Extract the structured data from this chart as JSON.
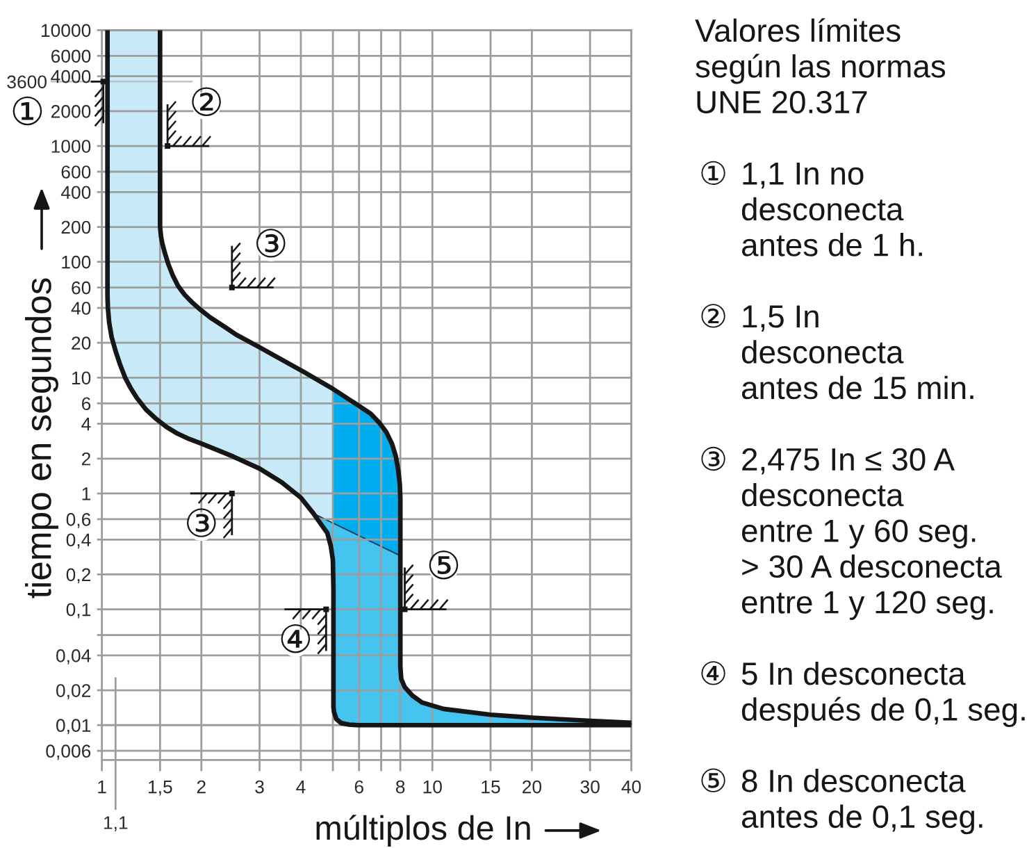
{
  "chart_data": {
    "type": "line",
    "title": "Valores límites\nsegún las normas\nUNE 20.317",
    "xlabel": "múltiplos de In",
    "ylabel": "tiempo en segundos",
    "log": "xy",
    "xlim": [
      1,
      40
    ],
    "ylim": [
      0.005,
      10000
    ],
    "xticks": [
      1,
      {
        "value": 1.5,
        "label": "1,5"
      },
      2,
      3,
      4,
      {
        "value": 5,
        "label": null
      },
      6,
      {
        "value": 7,
        "label": null
      },
      8,
      10,
      15,
      20,
      30,
      40
    ],
    "yticks": [
      10000,
      6000,
      4000,
      2000,
      1000,
      600,
      400,
      200,
      100,
      60,
      40,
      20,
      10,
      6,
      4,
      2,
      1,
      {
        "value": 0.6,
        "label": "0,6"
      },
      {
        "value": 0.4,
        "label": "0,4"
      },
      {
        "value": 0.2,
        "label": "0,2"
      },
      {
        "value": 0.1,
        "label": "0,1"
      },
      {
        "value": 0.06,
        "label": null
      },
      {
        "value": 0.04,
        "label": "0,04"
      },
      {
        "value": 0.02,
        "label": "0,02"
      },
      {
        "value": 0.01,
        "label": "0,01"
      },
      {
        "value": 0.006,
        "label": "0,006"
      }
    ],
    "grid": true,
    "ref_lines": [
      {
        "axis": "x",
        "value": 1.1,
        "label": "1,1",
        "color": "#9d9d9d"
      },
      {
        "axis": "y",
        "value": 3600,
        "label": "3600",
        "color": "#bdbdbd"
      }
    ],
    "series": [
      {
        "type": "area",
        "color": "#c8e9f8",
        "x": [
          1.04,
          1.04,
          1.043,
          1.052,
          1.07,
          1.1,
          1.135,
          1.176,
          1.22,
          1.275,
          1.36,
          1.46,
          1.57,
          1.69,
          1.84,
          2,
          2.5,
          3,
          3.5,
          4,
          4.37,
          5,
          5,
          4.6,
          4.13,
          3.5,
          3,
          2.55,
          2.35,
          2.13,
          2,
          1.885,
          1.78,
          1.7,
          1.64,
          1.59,
          1.55,
          1.523,
          1.51,
          1.5,
          1.5
        ],
        "values": [
          10000,
          50,
          40,
          30,
          22.5,
          17,
          13,
          10,
          8.2,
          6.7,
          5.3,
          4.4,
          3.75,
          3.3,
          2.95,
          2.7,
          2.08,
          1.64,
          1.25,
          0.92,
          0.67,
          0.55,
          8,
          9.2,
          11,
          14.3,
          18.3,
          23.5,
          27.5,
          33,
          38,
          44,
          52,
          62,
          76,
          95,
          120,
          145,
          165,
          200,
          10000
        ]
      },
      {
        "type": "area",
        "color": "#00aeef",
        "x": [
          5,
          5,
          6,
          6.5,
          6.9,
          7.25,
          7.55,
          7.75,
          7.89,
          7.97,
          8,
          8
        ],
        "values": [
          0.55,
          8,
          5.7,
          4.9,
          4.1,
          3.4,
          2.68,
          2.1,
          1.57,
          1.2,
          0.9,
          0.29
        ]
      },
      {
        "type": "area",
        "color": "#45c4f0",
        "x": [
          4.37,
          4.63,
          4.81,
          4.93,
          5,
          5.02,
          5.02,
          5.04,
          5.12,
          5.3,
          5.6,
          5.95,
          40,
          40,
          30,
          20,
          15,
          10.8,
          9.3,
          8.7,
          8.25,
          8.05,
          8,
          8
        ],
        "values": [
          0.67,
          0.53,
          0.456,
          0.35,
          0.267,
          0.15,
          0.0144,
          0.013,
          0.0113,
          0.0104,
          0.0101,
          0.01,
          0.01,
          0.0105,
          0.0109,
          0.0116,
          0.0123,
          0.0138,
          0.0157,
          0.018,
          0.0213,
          0.025,
          0.032,
          0.29
        ]
      },
      {
        "color": "#161616",
        "x": [
          1.04,
          1.04,
          1.043,
          1.052,
          1.07,
          1.1,
          1.135,
          1.176,
          1.22,
          1.275,
          1.36,
          1.46,
          1.57,
          1.69,
          1.84,
          2,
          2.5,
          3,
          3.5,
          4,
          4.37,
          4.63,
          4.81,
          4.93,
          5,
          5.02,
          5.02,
          5.04,
          5.12,
          5.3,
          5.6,
          5.95,
          40
        ],
        "values": [
          10000,
          50,
          40,
          30,
          22.5,
          17,
          13,
          10,
          8.2,
          6.7,
          5.3,
          4.4,
          3.75,
          3.3,
          2.95,
          2.7,
          2.08,
          1.64,
          1.25,
          0.92,
          0.67,
          0.53,
          0.456,
          0.35,
          0.267,
          0.15,
          0.0144,
          0.013,
          0.0113,
          0.0104,
          0.0101,
          0.01,
          0.01
        ]
      },
      {
        "color": "#161616",
        "x": [
          1.5,
          1.5,
          1.51,
          1.523,
          1.55,
          1.59,
          1.64,
          1.7,
          1.78,
          1.885,
          2,
          2.13,
          2.35,
          2.55,
          3,
          3.5,
          4.13,
          4.6,
          5,
          6,
          6.5,
          6.9,
          7.25,
          7.55,
          7.75,
          7.89,
          7.97,
          8,
          8,
          8,
          8.05,
          8.25,
          8.7,
          9.3,
          10.8,
          15,
          20,
          30,
          40
        ],
        "values": [
          10000,
          200,
          165,
          145,
          120,
          95,
          76,
          62,
          52,
          44,
          38,
          33,
          27.5,
          23.5,
          18.3,
          14.3,
          11,
          9.2,
          8,
          5.7,
          4.9,
          4.1,
          3.4,
          2.68,
          2.1,
          1.57,
          1.2,
          0.9,
          0.29,
          0.032,
          0.025,
          0.0213,
          0.018,
          0.0157,
          0.0138,
          0.0123,
          0.0116,
          0.0109,
          0.0105
        ]
      },
      {
        "type": "scatter",
        "marker": "square",
        "color": "#161616",
        "x": [
          1.01,
          1.58,
          2.475,
          2.475,
          4.77,
          8.25
        ],
        "values": [
          3600,
          1000,
          60,
          1,
          0.1,
          0.1
        ]
      }
    ],
    "annotations": [
      {
        "text": "①",
        "x": 1.01,
        "y": 3600
      },
      {
        "text": "②",
        "x": 1.58,
        "y": 1000
      },
      {
        "text": "③",
        "x": 2.475,
        "y": 60
      },
      {
        "text": "③",
        "x": 2.475,
        "y": 1
      },
      {
        "text": "④",
        "x": 4.77,
        "y": 0.1
      },
      {
        "text": "⑤",
        "x": 8.25,
        "y": 0.1
      },
      "① 1,1 In no\ndesconecta\nantes de 1 h.",
      "② 1,5 In\ndesconecta\nantes de 15 min.",
      "③ 2,475 In ≤ 30 A\ndesconecta\nentre 1 y 60 seg.\n> 30 A desconecta\nentre 1 y 120 seg.",
      "④ 5 In desconecta\ndespués de 0,1 seg.",
      "⑤ 8 In desconecta\nantes de 0,1 seg."
    ]
  }
}
